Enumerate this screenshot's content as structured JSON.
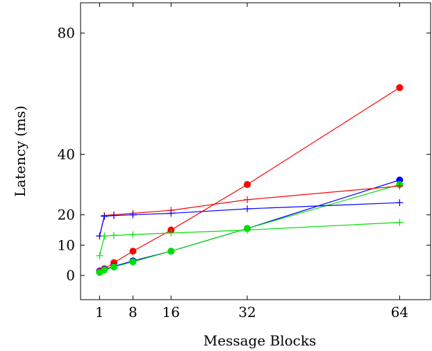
{
  "chart_data": {
    "type": "line",
    "title": "",
    "xlabel": "Message Blocks",
    "ylabel": "Latency (ms)",
    "xlim": [
      -3,
      70.5
    ],
    "ylim": [
      -8,
      90
    ],
    "xticks": [
      1,
      8,
      16,
      32,
      64
    ],
    "yticks": [
      0,
      10,
      20,
      40,
      80
    ],
    "grid": false,
    "legend": "none",
    "series": [
      {
        "marker": "circle",
        "color": "#ff0000",
        "x": [
          1,
          2,
          4,
          8,
          16,
          32,
          64
        ],
        "y": [
          1.5,
          2.2,
          4.2,
          8.0,
          15.0,
          30.0,
          62.0
        ]
      },
      {
        "marker": "circle",
        "color": "#0000ff",
        "x": [
          1,
          2,
          4,
          8,
          16,
          32,
          64
        ],
        "y": [
          1.2,
          2.0,
          3.0,
          4.8,
          8.0,
          15.5,
          31.5
        ]
      },
      {
        "marker": "circle",
        "color": "#00e000",
        "x": [
          1,
          2,
          4,
          8,
          16,
          32,
          64
        ],
        "y": [
          1.0,
          1.8,
          2.8,
          4.5,
          8.0,
          15.5,
          30.0
        ]
      },
      {
        "marker": "plus",
        "color": "#ff0000",
        "x": [
          1,
          2,
          4,
          8,
          16,
          32,
          64
        ],
        "y": [
          13.0,
          19.8,
          20.0,
          20.5,
          21.5,
          25.0,
          29.5
        ]
      },
      {
        "marker": "plus",
        "color": "#0000ff",
        "x": [
          1,
          2,
          4,
          8,
          16,
          32,
          64
        ],
        "y": [
          13.0,
          19.5,
          19.8,
          20.0,
          20.5,
          22.0,
          24.0
        ]
      },
      {
        "marker": "plus",
        "color": "#00e000",
        "x": [
          1,
          2,
          4,
          8,
          16,
          32,
          64
        ],
        "y": [
          6.5,
          13.0,
          13.2,
          13.5,
          14.0,
          15.0,
          17.5
        ]
      }
    ]
  }
}
